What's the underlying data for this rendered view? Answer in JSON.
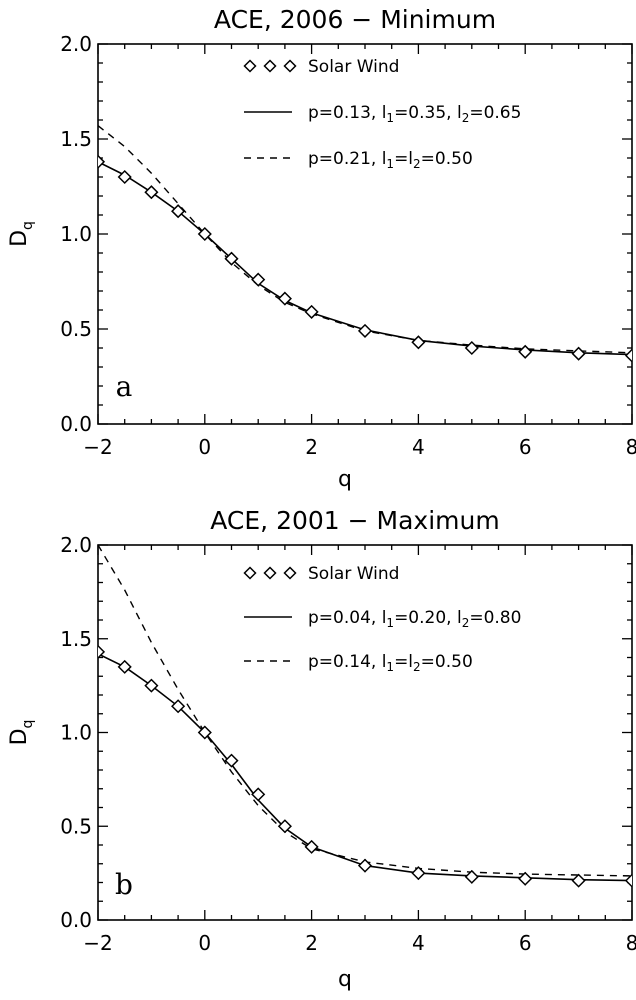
{
  "chart_data": [
    {
      "type": "scatter",
      "title": "ACE, 2006 − Minimum",
      "xlabel": "q",
      "ylabel_main": "D",
      "ylabel_sub": "q",
      "xlim": [
        -2,
        8
      ],
      "ylim": [
        0.0,
        2.0
      ],
      "xticks": [
        -2,
        0,
        2,
        4,
        6,
        8
      ],
      "xtick_labels": [
        "−2",
        "0",
        "2",
        "4",
        "6",
        "8"
      ],
      "yticks": [
        0.0,
        0.5,
        1.0,
        1.5,
        2.0
      ],
      "ytick_labels": [
        "0.0",
        "0.5",
        "1.0",
        "1.5",
        "2.0"
      ],
      "panel_label": "a",
      "legend_position": "top-right",
      "legend": [
        {
          "style": "diamonds",
          "parts": [
            "Solar Wind"
          ]
        },
        {
          "style": "solid",
          "parts": [
            "p=0.13, l",
            "1",
            "=0.35, l",
            "2",
            "=0.65"
          ]
        },
        {
          "style": "dashed",
          "parts": [
            "p=0.21, l",
            "1",
            "=l",
            "2",
            "=0.50"
          ]
        }
      ],
      "series": [
        {
          "name": "Solar Wind",
          "mark": "diamond",
          "x": [
            -2,
            -1.5,
            -1,
            -0.5,
            0,
            0.5,
            1,
            1.5,
            2,
            3,
            4,
            5,
            6,
            7,
            8
          ],
          "y": [
            1.38,
            1.3,
            1.22,
            1.12,
            1.0,
            0.87,
            0.76,
            0.66,
            0.59,
            0.49,
            0.43,
            0.4,
            0.38,
            0.37,
            0.36
          ],
          "err": [
            0.015,
            0.015,
            0.015,
            0.015,
            0.01,
            0.015,
            0.015,
            0.015,
            0.02,
            0.03,
            0.03,
            0.03,
            0.03,
            0.025,
            0.025
          ]
        },
        {
          "name": "p=0.13, l1=0.35, l2=0.65",
          "line": "solid",
          "x": [
            -2,
            -1.5,
            -1,
            -0.5,
            0,
            0.5,
            1,
            1.5,
            2,
            3,
            4,
            5,
            6,
            7,
            8
          ],
          "y": [
            1.38,
            1.31,
            1.22,
            1.12,
            1.0,
            0.87,
            0.74,
            0.65,
            0.585,
            0.495,
            0.44,
            0.41,
            0.39,
            0.375,
            0.365
          ]
        },
        {
          "name": "p=0.21, l1=l2=0.50",
          "line": "dashed",
          "x": [
            -2,
            -1.5,
            -1,
            -0.5,
            0,
            0.5,
            1,
            1.5,
            2,
            3,
            4,
            5,
            6,
            7,
            8
          ],
          "y": [
            1.57,
            1.46,
            1.32,
            1.16,
            1.0,
            0.85,
            0.73,
            0.64,
            0.58,
            0.49,
            0.44,
            0.415,
            0.395,
            0.385,
            0.375
          ]
        }
      ]
    },
    {
      "type": "scatter",
      "title": "ACE, 2001 − Maximum",
      "xlabel": "q",
      "ylabel_main": "D",
      "ylabel_sub": "q",
      "xlim": [
        -2,
        8
      ],
      "ylim": [
        0.0,
        2.0
      ],
      "xticks": [
        -2,
        0,
        2,
        4,
        6,
        8
      ],
      "xtick_labels": [
        "−2",
        "0",
        "2",
        "4",
        "6",
        "8"
      ],
      "yticks": [
        0.0,
        0.5,
        1.0,
        1.5,
        2.0
      ],
      "ytick_labels": [
        "0.0",
        "0.5",
        "1.0",
        "1.5",
        "2.0"
      ],
      "panel_label": "b",
      "legend_position": "top-right",
      "legend": [
        {
          "style": "diamonds",
          "parts": [
            "Solar Wind"
          ]
        },
        {
          "style": "solid",
          "parts": [
            "p=0.04, l",
            "1",
            "=0.20, l",
            "2",
            "=0.80"
          ]
        },
        {
          "style": "dashed",
          "parts": [
            "p=0.14, l",
            "1",
            "=l",
            "2",
            "=0.50"
          ]
        }
      ],
      "series": [
        {
          "name": "Solar Wind",
          "mark": "diamond",
          "x": [
            -2,
            -1.5,
            -1,
            -0.5,
            0,
            0.5,
            1,
            1.5,
            2,
            3,
            4,
            5,
            6,
            7,
            8
          ],
          "y": [
            1.43,
            1.35,
            1.25,
            1.14,
            1.0,
            0.85,
            0.67,
            0.5,
            0.39,
            0.29,
            0.25,
            0.23,
            0.22,
            0.21,
            0.21
          ],
          "err": [
            0.015,
            0.015,
            0.015,
            0.015,
            0.01,
            0.015,
            0.015,
            0.02,
            0.03,
            0.035,
            0.035,
            0.035,
            0.035,
            0.03,
            0.03
          ]
        },
        {
          "name": "p=0.04, l1=0.20, l2=0.80",
          "line": "solid",
          "x": [
            -2,
            -1.5,
            -1,
            -0.5,
            0,
            0.5,
            1,
            1.5,
            2,
            3,
            4,
            5,
            6,
            7,
            8
          ],
          "y": [
            1.42,
            1.35,
            1.25,
            1.14,
            1.0,
            0.83,
            0.64,
            0.49,
            0.39,
            0.29,
            0.25,
            0.235,
            0.225,
            0.215,
            0.21
          ]
        },
        {
          "name": "p=0.14, l1=l2=0.50",
          "line": "dashed",
          "x": [
            -2,
            -1.5,
            -1,
            -0.5,
            0,
            0.5,
            1,
            1.5,
            2,
            3,
            4,
            5,
            6,
            7,
            8
          ],
          "y": [
            2.0,
            1.76,
            1.48,
            1.23,
            1.0,
            0.79,
            0.61,
            0.47,
            0.38,
            0.31,
            0.275,
            0.255,
            0.245,
            0.24,
            0.235
          ]
        }
      ]
    }
  ]
}
